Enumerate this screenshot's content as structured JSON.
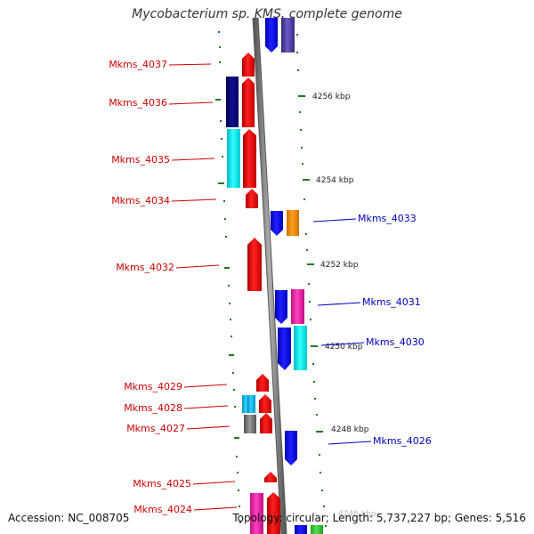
{
  "title": "Mycobacterium sp. KMS, complete genome",
  "footer": {
    "accession": "Accession: NC_008705",
    "topology": "Topology: circular; Length: 5,737,227 bp; Genes: 5,516"
  },
  "colors": {
    "backbone": "#8c8c8c",
    "tick": "#1e7a1e",
    "label_reverse": "#d00000",
    "label_forward": "#0000c0"
  },
  "scale": {
    "ticks": [
      {
        "label": "4256 kbp"
      },
      {
        "label": "4254 kbp"
      },
      {
        "label": "4252 kbp"
      },
      {
        "label": "4250 kbp"
      },
      {
        "label": "4248 kbp"
      },
      {
        "label": "4246 kbp"
      }
    ]
  },
  "reverse_labels": [
    "Mkms_4037",
    "Mkms_4036",
    "Mkms_4035",
    "Mkms_4034",
    "Mkms_4032",
    "Mkms_4029",
    "Mkms_4028",
    "Mkms_4027",
    "Mkms_4025",
    "Mkms_4024"
  ],
  "forward_labels": [
    "Mkms_4033",
    "Mkms_4031",
    "Mkms_4030",
    "Mkms_4026"
  ],
  "reverse_gene_colors": [
    "red",
    "navy",
    "cyan",
    "light-blue",
    "gray",
    "magenta"
  ],
  "forward_gene_colors": [
    "blue",
    "slate-blue",
    "orange",
    "magenta",
    "cyan",
    "green"
  ]
}
